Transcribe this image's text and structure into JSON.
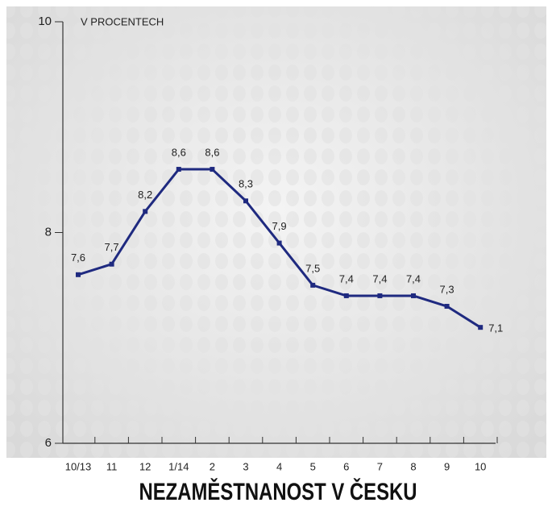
{
  "chart_data": {
    "type": "line",
    "title": "NEZAMĚSTNANOST V ČESKU",
    "y_label": "V PROCENTECH",
    "categories": [
      "10/13",
      "11",
      "12",
      "1/14",
      "2",
      "3",
      "4",
      "5",
      "6",
      "7",
      "8",
      "9",
      "10"
    ],
    "values": [
      7.6,
      7.7,
      8.2,
      8.6,
      8.6,
      8.3,
      7.9,
      7.5,
      7.4,
      7.4,
      7.4,
      7.3,
      7.1
    ],
    "value_labels": [
      "7,6",
      "7,7",
      "8,2",
      "8,6",
      "8,6",
      "8,3",
      "7,9",
      "7,5",
      "7,4",
      "7,4",
      "7,4",
      "7,3",
      "7,1"
    ],
    "color": "#1f2a80",
    "ylim": [
      6,
      10
    ],
    "yticks": [
      6,
      8,
      10
    ]
  }
}
